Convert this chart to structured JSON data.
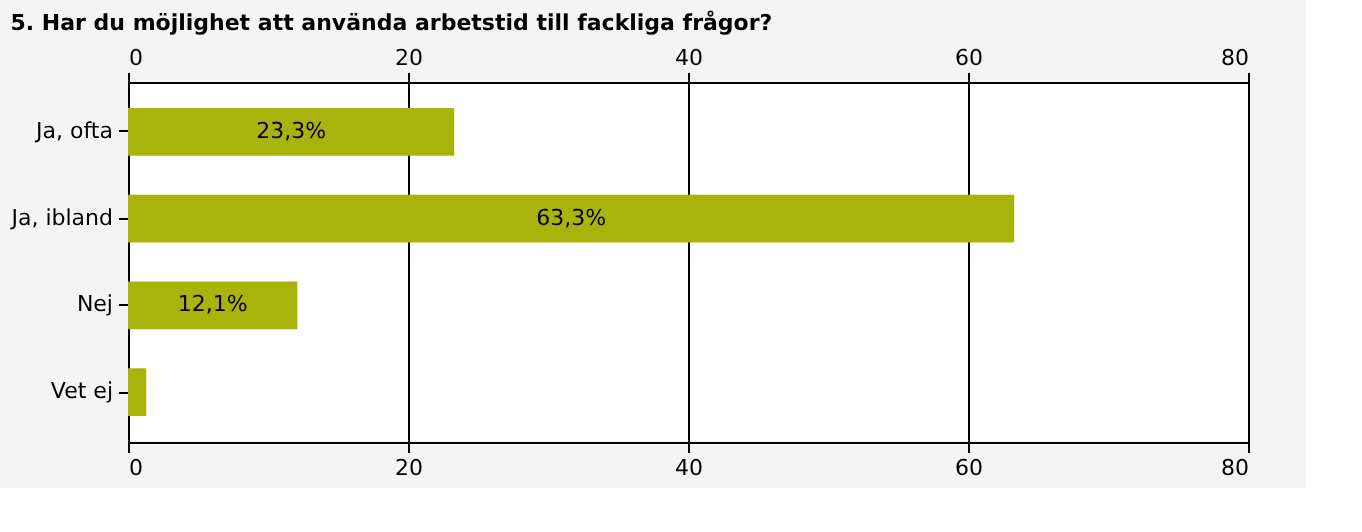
{
  "chart_data": {
    "type": "bar",
    "title": "5. Har du möjlighet att använda arbetstid till fackliga frågor?",
    "orientation": "horizontal",
    "categories": [
      "Ja, ofta",
      "Ja, ibland",
      "Nej",
      "Vet ej"
    ],
    "values": [
      23.3,
      63.3,
      12.1,
      1.3
    ],
    "value_labels": [
      "23,3%",
      "63,3%",
      "12,1%",
      null
    ],
    "color": "#a8b40c",
    "xlim": [
      0,
      80
    ],
    "xticks": [
      0,
      20,
      40,
      60,
      80
    ],
    "x2lim": [
      0,
      80
    ],
    "x2ticks": [
      0,
      20,
      40,
      60,
      80
    ],
    "grid": "x"
  }
}
